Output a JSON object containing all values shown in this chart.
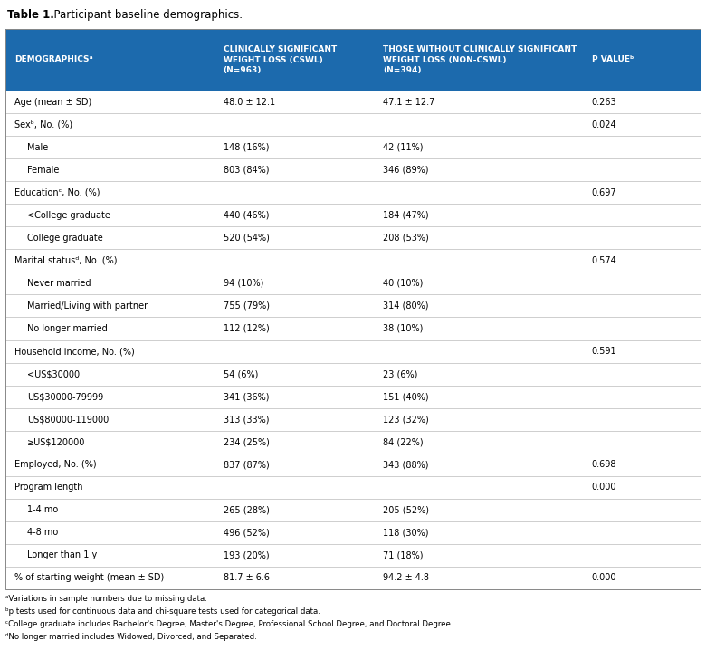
{
  "title_bold": "Table 1.",
  "title_normal": "  Participant baseline demographics.",
  "header_bg": "#1c6aad",
  "header_text_color": "#ffffff",
  "grid_color": "#bbbbbb",
  "outer_border_color": "#888888",
  "col_starts": [
    0.008,
    0.308,
    0.538,
    0.838
  ],
  "col_ends": [
    0.308,
    0.538,
    0.838,
    0.995
  ],
  "headers": [
    "DEMOGRAPHICSᵃ",
    "CLINICALLY SIGNIFICANT\nWEIGHT LOSS (CSWL)\n(N=963)",
    "THOSE WITHOUT CLINICALLY SIGNIFICANT\nWEIGHT LOSS (NON-CSWL)\n(N=394)",
    "P VALUEᵇ"
  ],
  "rows": [
    {
      "label": "Age (mean ± SD)",
      "indent": false,
      "cswl": "48.0 ± 12.1",
      "noncswl": "47.1 ± 12.7",
      "pval": "0.263"
    },
    {
      "label": "Sexᵇ, No. (%)",
      "indent": false,
      "cswl": "",
      "noncswl": "",
      "pval": "0.024"
    },
    {
      "label": "Male",
      "indent": true,
      "cswl": "148 (16%)",
      "noncswl": "42 (11%)",
      "pval": ""
    },
    {
      "label": "Female",
      "indent": true,
      "cswl": "803 (84%)",
      "noncswl": "346 (89%)",
      "pval": ""
    },
    {
      "label": "Educationᶜ, No. (%)",
      "indent": false,
      "cswl": "",
      "noncswl": "",
      "pval": "0.697"
    },
    {
      "label": "<College graduate",
      "indent": true,
      "cswl": "440 (46%)",
      "noncswl": "184 (47%)",
      "pval": ""
    },
    {
      "label": "College graduate",
      "indent": true,
      "cswl": "520 (54%)",
      "noncswl": "208 (53%)",
      "pval": ""
    },
    {
      "label": "Marital statusᵈ, No. (%)",
      "indent": false,
      "cswl": "",
      "noncswl": "",
      "pval": "0.574"
    },
    {
      "label": "Never married",
      "indent": true,
      "cswl": "94 (10%)",
      "noncswl": "40 (10%)",
      "pval": ""
    },
    {
      "label": "Married/Living with partner",
      "indent": true,
      "cswl": "755 (79%)",
      "noncswl": "314 (80%)",
      "pval": ""
    },
    {
      "label": "No longer married",
      "indent": true,
      "cswl": "112 (12%)",
      "noncswl": "38 (10%)",
      "pval": ""
    },
    {
      "label": "Household income, No. (%)",
      "indent": false,
      "cswl": "",
      "noncswl": "",
      "pval": "0.591"
    },
    {
      "label": "<US$30000",
      "indent": true,
      "cswl": "54 (6%)",
      "noncswl": "23 (6%)",
      "pval": ""
    },
    {
      "label": "US$30000-79999",
      "indent": true,
      "cswl": "341 (36%)",
      "noncswl": "151 (40%)",
      "pval": ""
    },
    {
      "label": "US$80000-119000",
      "indent": true,
      "cswl": "313 (33%)",
      "noncswl": "123 (32%)",
      "pval": ""
    },
    {
      "label": "≥US$120000",
      "indent": true,
      "cswl": "234 (25%)",
      "noncswl": "84 (22%)",
      "pval": ""
    },
    {
      "label": "Employed, No. (%)",
      "indent": false,
      "cswl": "837 (87%)",
      "noncswl": "343 (88%)",
      "pval": "0.698"
    },
    {
      "label": "Program length",
      "indent": false,
      "cswl": "",
      "noncswl": "",
      "pval": "0.000"
    },
    {
      "label": "1-4 mo",
      "indent": true,
      "cswl": "265 (28%)",
      "noncswl": "205 (52%)",
      "pval": ""
    },
    {
      "label": "4-8 mo",
      "indent": true,
      "cswl": "496 (52%)",
      "noncswl": "118 (30%)",
      "pval": ""
    },
    {
      "label": "Longer than 1 y",
      "indent": true,
      "cswl": "193 (20%)",
      "noncswl": "71 (18%)",
      "pval": ""
    },
    {
      "label": "% of starting weight (mean ± SD)",
      "indent": false,
      "cswl": "81.7 ± 6.6",
      "noncswl": "94.2 ± 4.8",
      "pval": "0.000"
    }
  ],
  "footnotes": [
    "ᵃVariations in sample numbers due to missing data.",
    "ᵇp tests used for continuous data and chi-square tests used for categorical data.",
    "ᶜCollege graduate includes Bachelor's Degree, Master's Degree, Professional School Degree, and Doctoral Degree.",
    "ᵈNo longer married includes Widowed, Divorced, and Separated."
  ],
  "title_fontsize": 8.5,
  "header_fontsize": 6.5,
  "cell_fontsize": 7.0,
  "footnote_fontsize": 6.2
}
